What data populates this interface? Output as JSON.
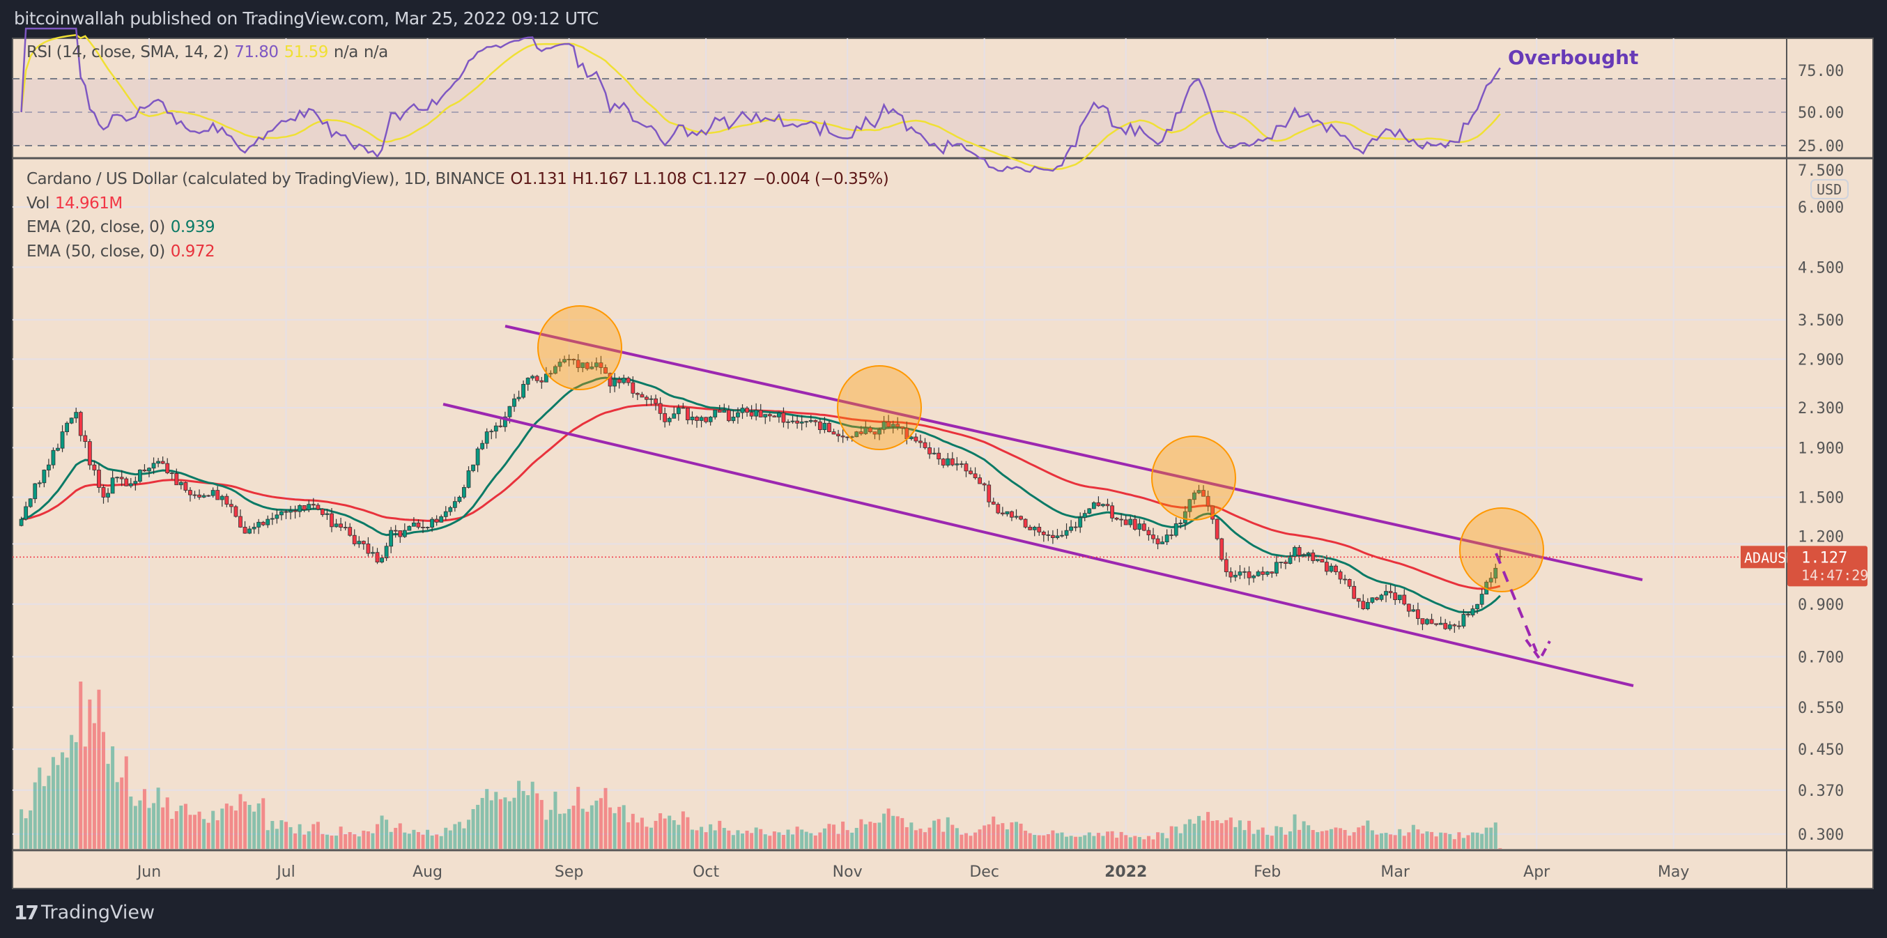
{
  "header": {
    "publisher": "bitcoinwallah published on TradingView.com, Mar 25, 2022 09:12 UTC"
  },
  "rsi_legend": {
    "label": "RSI (14, close, SMA, 14, 2)",
    "rsi": "71.80",
    "sma": "51.59",
    "na1": "n/a",
    "na2": "n/a"
  },
  "price_legend": {
    "symbol": "Cardano / US Dollar (calculated by TradingView), 1D, BINANCE",
    "open": "O1.131",
    "high": "H1.167",
    "low": "L1.108",
    "close": "C1.127",
    "change": "−0.004 (−0.35%)",
    "vol_label": "Vol",
    "vol_value": "14.961M",
    "ema20_label": "EMA (20, close, 0)",
    "ema20_value": "0.939",
    "ema50_label": "EMA (50, close, 0)",
    "ema50_value": "0.972"
  },
  "annotation": {
    "overbought": "Overbought"
  },
  "currency_button": "USD",
  "price_tag": {
    "symbol": "ADAUSD",
    "price": "1.127",
    "countdown": "14:47:29"
  },
  "logo": {
    "text": "TradingView"
  },
  "colors": {
    "up": "#089981",
    "down": "#f23645",
    "ema20": "#0b7a66",
    "ema50": "#e8323c",
    "rsi": "#7e57c2",
    "rsi_sma": "#f0e034",
    "channel": "#9c27b0",
    "circle": "#ff9800",
    "background": "#f2e0cf"
  },
  "chart_data": {
    "type": "candlestick",
    "title": "Cardano / US Dollar, 1D, BINANCE",
    "end_date": "2022-03-24",
    "step_days": 3,
    "y_scale": "log",
    "price_ticks": [
      "6.000",
      "4.500",
      "3.500",
      "2.900",
      "2.300",
      "1.900",
      "1.500",
      "1.200",
      "0.900",
      "0.700",
      "0.550",
      "0.450",
      "0.370",
      "0.300"
    ],
    "price_tick_top": "7.500",
    "rsi_ticks": [
      "75.00",
      "50.00",
      "25.00"
    ],
    "rsi_bands": [
      30,
      50,
      70
    ],
    "x_ticks": [
      "Jun",
      "Jul",
      "Aug",
      "Sep",
      "Oct",
      "Nov",
      "Dec",
      "2022",
      "Feb",
      "Mar",
      "Apr",
      "May"
    ],
    "closes": [
      1.35,
      1.6,
      1.75,
      2.05,
      2.25,
      1.75,
      1.5,
      1.65,
      1.6,
      1.7,
      1.78,
      1.68,
      1.55,
      1.5,
      1.55,
      1.45,
      1.3,
      1.3,
      1.35,
      1.4,
      1.4,
      1.45,
      1.38,
      1.32,
      1.25,
      1.2,
      1.1,
      1.28,
      1.28,
      1.3,
      1.35,
      1.4,
      1.5,
      1.75,
      2.05,
      2.1,
      2.4,
      2.65,
      2.6,
      2.8,
      2.9,
      2.85,
      2.85,
      2.55,
      2.65,
      2.45,
      2.4,
      2.15,
      2.3,
      2.2,
      2.15,
      2.25,
      2.2,
      2.25,
      2.2,
      2.2,
      2.15,
      2.15,
      2.15,
      2.05,
      2.0,
      2.05,
      2.05,
      2.15,
      2.1,
      2.0,
      1.9,
      1.8,
      1.75,
      1.7,
      1.6,
      1.45,
      1.4,
      1.35,
      1.3,
      1.25,
      1.25,
      1.3,
      1.42,
      1.45,
      1.35,
      1.35,
      1.28,
      1.2,
      1.25,
      1.4,
      1.55,
      1.35,
      1.05,
      1.05,
      1.03,
      1.05,
      1.1,
      1.18,
      1.15,
      1.1,
      1.05,
      0.98,
      0.88,
      0.92,
      0.95,
      0.9,
      0.84,
      0.82,
      0.8,
      0.81,
      0.88,
      1.0,
      1.127
    ],
    "volume_millions": [
      900,
      1500,
      1900,
      2600,
      3000,
      3500,
      2400,
      1800,
      1300,
      1100,
      1200,
      900,
      800,
      700,
      750,
      800,
      1200,
      900,
      600,
      500,
      450,
      500,
      400,
      420,
      380,
      450,
      700,
      500,
      380,
      350,
      400,
      450,
      600,
      900,
      1100,
      900,
      1200,
      1300,
      900,
      1000,
      1100,
      900,
      1300,
      1000,
      800,
      700,
      650,
      900,
      700,
      500,
      450,
      500,
      400,
      450,
      380,
      350,
      420,
      380,
      400,
      450,
      500,
      520,
      600,
      900,
      700,
      600,
      500,
      550,
      450,
      400,
      500,
      650,
      600,
      450,
      400,
      350,
      300,
      320,
      380,
      350,
      330,
      300,
      300,
      320,
      400,
      600,
      800,
      600,
      700,
      500,
      400,
      420,
      450,
      600,
      500,
      400,
      380,
      420,
      500,
      400,
      350,
      420,
      380,
      320,
      300,
      320,
      400,
      600,
      15
    ]
  }
}
